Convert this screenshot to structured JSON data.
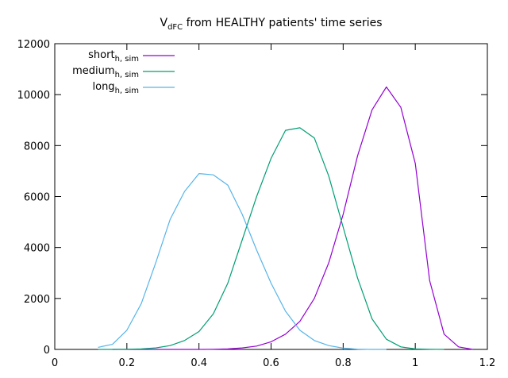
{
  "chart_data": {
    "type": "line",
    "title": {
      "base": "V",
      "sub": "dFC",
      "rest": " from HEALTHY patients' time series"
    },
    "xlim": [
      0,
      1.2
    ],
    "ylim": [
      0,
      12000
    ],
    "xticks": [
      0,
      0.2,
      0.4,
      0.6,
      0.8,
      1,
      1.2
    ],
    "xtick_labels": [
      "0",
      "0.2",
      "0.4",
      "0.6",
      "0.8",
      "1",
      "1.2"
    ],
    "yticks": [
      0,
      2000,
      4000,
      6000,
      8000,
      10000,
      12000
    ],
    "ytick_labels": [
      "0",
      "2000",
      "4000",
      "6000",
      "8000",
      "10000",
      "12000"
    ],
    "legend_position": "top-left",
    "series": [
      {
        "name": "short",
        "name_sub": "h, sim",
        "color": "#9400d3",
        "x": [
          0.16,
          0.2,
          0.24,
          0.28,
          0.32,
          0.36,
          0.4,
          0.44,
          0.48,
          0.52,
          0.56,
          0.6,
          0.64,
          0.68,
          0.72,
          0.76,
          0.8,
          0.84,
          0.88,
          0.92,
          0.96,
          1.0,
          1.04,
          1.08,
          1.12,
          1.16
        ],
        "y": [
          0,
          0,
          0,
          0,
          0,
          0,
          0,
          5,
          20,
          60,
          130,
          300,
          600,
          1100,
          2000,
          3400,
          5300,
          7600,
          9400,
          10300,
          9500,
          7300,
          2700,
          600,
          100,
          0
        ]
      },
      {
        "name": "medium",
        "name_sub": "h, sim",
        "color": "#009e73",
        "x": [
          0.12,
          0.16,
          0.2,
          0.24,
          0.28,
          0.32,
          0.36,
          0.4,
          0.44,
          0.48,
          0.52,
          0.56,
          0.6,
          0.64,
          0.68,
          0.72,
          0.76,
          0.8,
          0.84,
          0.88,
          0.92,
          0.96,
          1.0,
          1.04,
          1.08
        ],
        "y": [
          0,
          0,
          5,
          20,
          60,
          150,
          350,
          700,
          1400,
          2600,
          4300,
          6000,
          7500,
          8600,
          8700,
          8300,
          6800,
          4800,
          2800,
          1200,
          400,
          100,
          20,
          5,
          0
        ]
      },
      {
        "name": "long",
        "name_sub": "h, sim",
        "color": "#56b4e9",
        "x": [
          0.12,
          0.16,
          0.2,
          0.24,
          0.28,
          0.32,
          0.36,
          0.4,
          0.44,
          0.48,
          0.52,
          0.56,
          0.6,
          0.64,
          0.68,
          0.72,
          0.76,
          0.8,
          0.84,
          0.88,
          0.92
        ],
        "y": [
          80,
          200,
          750,
          1800,
          3400,
          5100,
          6200,
          6900,
          6850,
          6450,
          5300,
          3900,
          2600,
          1500,
          750,
          350,
          150,
          50,
          10,
          0,
          0
        ]
      }
    ]
  }
}
